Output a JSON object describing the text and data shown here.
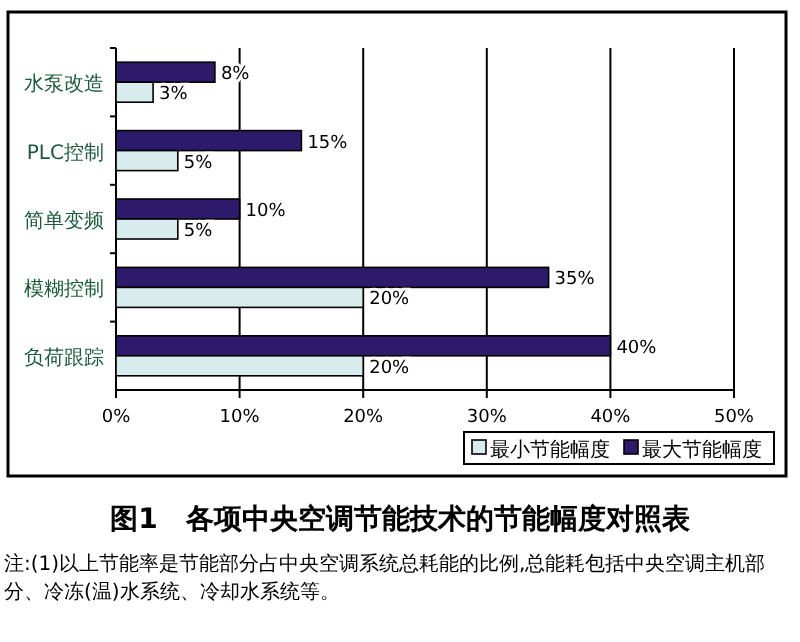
{
  "chart_data": {
    "type": "bar",
    "orientation": "horizontal",
    "title": "图1　各项中央空调节能技术的节能幅度对照表",
    "categories": [
      "水泵改造",
      "PLC控制",
      "简单变频",
      "模糊控制",
      "负荷跟踪"
    ],
    "series": [
      {
        "name": "最小节能幅度",
        "color": "#d8ecee",
        "values": [
          3,
          5,
          5,
          20,
          20
        ],
        "value_labels": [
          "3%",
          "5%",
          "5%",
          "20%",
          "20%"
        ]
      },
      {
        "name": "最大节能幅度",
        "color": "#2e1a6b",
        "values": [
          8,
          15,
          10,
          35,
          40
        ],
        "value_labels": [
          "8%",
          "15%",
          "10%",
          "35%",
          "40%"
        ]
      }
    ],
    "xlim": [
      0,
      50
    ],
    "xticks": [
      {
        "value": 0,
        "label": "0%"
      },
      {
        "value": 10,
        "label": "10%"
      },
      {
        "value": 20,
        "label": "20%"
      },
      {
        "value": 30,
        "label": "30%"
      },
      {
        "value": 40,
        "label": "40%"
      },
      {
        "value": 50,
        "label": "50%"
      }
    ],
    "grid": "x",
    "legend": "bottom right",
    "annotations": [
      "注:(1)以上节能率是节能部分占中央空调系统总耗能的比例,总能耗包括中央空调主机部分、冷冻(温)水系统、冷却水系统等。"
    ]
  }
}
